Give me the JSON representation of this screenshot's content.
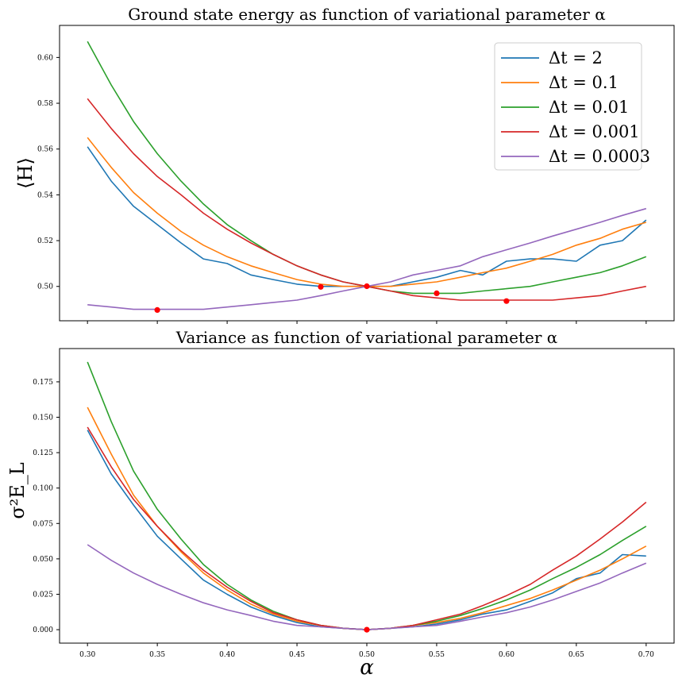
{
  "chart_data": [
    {
      "type": "line",
      "title": "Ground state energy as function of variational parameter α",
      "xlabel": "",
      "ylabel": "⟨H⟩",
      "xlim": [
        0.28,
        0.72
      ],
      "ylim": [
        0.485,
        0.614
      ],
      "xticks": [
        "0.30",
        "0.35",
        "0.40",
        "0.45",
        "0.50",
        "0.55",
        "0.60",
        "0.65",
        "0.70"
      ],
      "xtick_values": [
        0.3,
        0.35,
        0.4,
        0.45,
        0.5,
        0.55,
        0.6,
        0.65,
        0.7
      ],
      "show_xtick_labels": false,
      "yticks": [
        "0.50",
        "0.52",
        "0.54",
        "0.56",
        "0.58",
        "0.60"
      ],
      "ytick_values": [
        0.5,
        0.52,
        0.54,
        0.56,
        0.58,
        0.6
      ],
      "grid": false,
      "legend_position": "top-right",
      "x": [
        0.3,
        0.317,
        0.333,
        0.35,
        0.367,
        0.383,
        0.4,
        0.417,
        0.433,
        0.45,
        0.467,
        0.483,
        0.5,
        0.517,
        0.533,
        0.55,
        0.567,
        0.583,
        0.6,
        0.617,
        0.633,
        0.65,
        0.667,
        0.683,
        0.7
      ],
      "series": [
        {
          "name": "Δt = 2",
          "color": "#1f77b4",
          "values": [
            0.561,
            0.546,
            0.535,
            0.527,
            0.519,
            0.512,
            0.51,
            0.505,
            0.503,
            0.501,
            0.5,
            0.5,
            0.5,
            0.5,
            0.502,
            0.504,
            0.507,
            0.505,
            0.511,
            0.512,
            0.512,
            0.511,
            0.518,
            0.52,
            0.529
          ]
        },
        {
          "name": "Δt = 0.1",
          "color": "#ff7f0e",
          "values": [
            0.565,
            0.552,
            0.541,
            0.532,
            0.524,
            0.518,
            0.513,
            0.509,
            0.506,
            0.503,
            0.501,
            0.5,
            0.5,
            0.5,
            0.501,
            0.502,
            0.504,
            0.506,
            0.508,
            0.511,
            0.514,
            0.518,
            0.521,
            0.525,
            0.528
          ]
        },
        {
          "name": "Δt = 0.01",
          "color": "#2ca02c",
          "values": [
            0.607,
            0.588,
            0.572,
            0.558,
            0.546,
            0.536,
            0.527,
            0.52,
            0.514,
            0.509,
            0.505,
            0.502,
            0.5,
            0.498,
            0.497,
            0.497,
            0.497,
            0.498,
            0.499,
            0.5,
            0.502,
            0.504,
            0.506,
            0.509,
            0.513
          ]
        },
        {
          "name": "Δt = 0.001",
          "color": "#d62728",
          "values": [
            0.582,
            0.569,
            0.558,
            0.548,
            0.54,
            0.532,
            0.525,
            0.519,
            0.514,
            0.509,
            0.505,
            0.502,
            0.5,
            0.498,
            0.496,
            0.495,
            0.494,
            0.494,
            0.494,
            0.494,
            0.494,
            0.495,
            0.496,
            0.498,
            0.5
          ]
        },
        {
          "name": "Δt = 0.0003",
          "color": "#9467bd",
          "values": [
            0.492,
            0.491,
            0.49,
            0.49,
            0.49,
            0.49,
            0.491,
            0.492,
            0.493,
            0.494,
            0.496,
            0.498,
            0.5,
            0.502,
            0.505,
            0.507,
            0.509,
            0.513,
            0.516,
            0.519,
            0.522,
            0.525,
            0.528,
            0.531,
            0.534
          ]
        }
      ],
      "markers": {
        "color": "#ff0000",
        "points": [
          [
            0.35,
            0.4897
          ],
          [
            0.467,
            0.4998
          ],
          [
            0.5,
            0.5001
          ],
          [
            0.55,
            0.497
          ],
          [
            0.6,
            0.4936
          ]
        ]
      }
    },
    {
      "type": "line",
      "title": "Variance as function of variational parameter α",
      "xlabel": "α",
      "ylabel": "σ²E_L",
      "xlim": [
        0.28,
        0.72
      ],
      "ylim": [
        -0.0095,
        0.1985
      ],
      "xticks": [
        "0.30",
        "0.35",
        "0.40",
        "0.45",
        "0.50",
        "0.55",
        "0.60",
        "0.65",
        "0.70"
      ],
      "xtick_values": [
        0.3,
        0.35,
        0.4,
        0.45,
        0.5,
        0.55,
        0.6,
        0.65,
        0.7
      ],
      "show_xtick_labels": true,
      "yticks": [
        "0.000",
        "0.025",
        "0.050",
        "0.075",
        "0.100",
        "0.125",
        "0.150",
        "0.175"
      ],
      "ytick_values": [
        0.0,
        0.025,
        0.05,
        0.075,
        0.1,
        0.125,
        0.15,
        0.175
      ],
      "grid": false,
      "legend_position": "none",
      "x": [
        0.3,
        0.317,
        0.333,
        0.35,
        0.367,
        0.383,
        0.4,
        0.417,
        0.433,
        0.45,
        0.467,
        0.483,
        0.5,
        0.517,
        0.533,
        0.55,
        0.567,
        0.583,
        0.6,
        0.617,
        0.633,
        0.65,
        0.667,
        0.683,
        0.7
      ],
      "series": [
        {
          "name": "Δt = 2",
          "color": "#1f77b4",
          "values": [
            0.141,
            0.11,
            0.088,
            0.066,
            0.05,
            0.035,
            0.025,
            0.016,
            0.01,
            0.005,
            0.002,
            0.001,
            0.0,
            0.001,
            0.002,
            0.004,
            0.007,
            0.011,
            0.014,
            0.02,
            0.026,
            0.036,
            0.04,
            0.053,
            0.052
          ]
        },
        {
          "name": "Δt = 0.1",
          "color": "#ff7f0e",
          "values": [
            0.157,
            0.124,
            0.095,
            0.073,
            0.055,
            0.04,
            0.028,
            0.018,
            0.011,
            0.006,
            0.003,
            0.001,
            0.0,
            0.001,
            0.003,
            0.005,
            0.008,
            0.012,
            0.017,
            0.022,
            0.028,
            0.035,
            0.042,
            0.05,
            0.059
          ]
        },
        {
          "name": "Δt = 0.01",
          "color": "#2ca02c",
          "values": [
            0.189,
            0.147,
            0.112,
            0.085,
            0.064,
            0.046,
            0.032,
            0.021,
            0.013,
            0.007,
            0.003,
            0.001,
            0.0,
            0.001,
            0.003,
            0.006,
            0.01,
            0.015,
            0.021,
            0.028,
            0.036,
            0.044,
            0.053,
            0.063,
            0.073
          ]
        },
        {
          "name": "Δt = 0.001",
          "color": "#d62728",
          "values": [
            0.143,
            0.115,
            0.092,
            0.073,
            0.056,
            0.042,
            0.03,
            0.02,
            0.012,
            0.007,
            0.003,
            0.001,
            0.0,
            0.001,
            0.003,
            0.007,
            0.011,
            0.017,
            0.024,
            0.032,
            0.042,
            0.052,
            0.064,
            0.076,
            0.09
          ]
        },
        {
          "name": "Δt = 0.0003",
          "color": "#9467bd",
          "values": [
            0.06,
            0.049,
            0.04,
            0.032,
            0.025,
            0.019,
            0.014,
            0.01,
            0.006,
            0.003,
            0.002,
            0.001,
            0.0,
            0.001,
            0.002,
            0.003,
            0.006,
            0.009,
            0.012,
            0.016,
            0.021,
            0.027,
            0.033,
            0.04,
            0.047
          ]
        }
      ],
      "markers": {
        "color": "#ff0000",
        "points": [
          [
            0.5,
            0.0
          ]
        ]
      }
    }
  ]
}
